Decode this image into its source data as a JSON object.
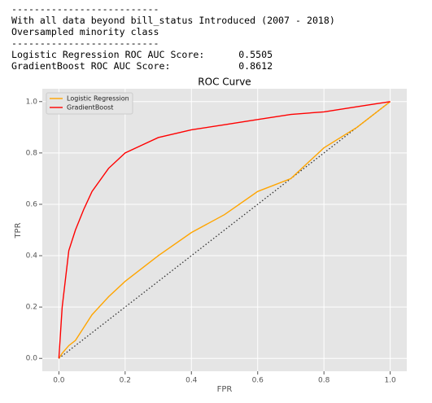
{
  "output": {
    "lines": [
      "--------------------------",
      "With all data beyond bill_status Introduced (2007 - 2018)",
      "Oversampled minority class",
      "--------------------------",
      "Logistic Regression ROC AUC Score:      0.5505",
      "GradientBoost ROC AUC Score:            0.8612"
    ]
  },
  "chart_data": {
    "type": "line",
    "title": "ROC Curve",
    "xlabel": "FPR",
    "ylabel": "TPR",
    "x": [
      0,
      0.01,
      0.03,
      0.05,
      0.075,
      0.1,
      0.15,
      0.2,
      0.25,
      0.3,
      0.4,
      0.5,
      0.6,
      0.7,
      0.8,
      0.9,
      1.0
    ],
    "series": [
      {
        "name": "Logistic Regression",
        "color": "#ffa500",
        "values": [
          0,
          0.02,
          0.05,
          0.07,
          0.12,
          0.17,
          0.24,
          0.3,
          0.35,
          0.4,
          0.49,
          0.56,
          0.65,
          0.7,
          0.82,
          0.9,
          1.0
        ]
      },
      {
        "name": "GradientBoost",
        "color": "#ff0000",
        "values": [
          0,
          0.2,
          0.42,
          0.5,
          0.58,
          0.65,
          0.74,
          0.8,
          0.83,
          0.86,
          0.89,
          0.91,
          0.93,
          0.95,
          0.96,
          0.98,
          1.0
        ]
      }
    ],
    "xlim": [
      -0.05,
      1.05
    ],
    "ylim": [
      -0.05,
      1.05
    ],
    "xticks": [
      {
        "value": 0,
        "label": "0.0"
      },
      0.2,
      0.4,
      0.6,
      0.8,
      {
        "value": 1,
        "label": "1.0"
      }
    ],
    "yticks": [
      {
        "value": 0,
        "label": "0.0"
      },
      0.2,
      0.4,
      0.6,
      0.8,
      {
        "value": 1,
        "label": "1.0"
      }
    ],
    "grid": true,
    "legend": "upper left"
  }
}
